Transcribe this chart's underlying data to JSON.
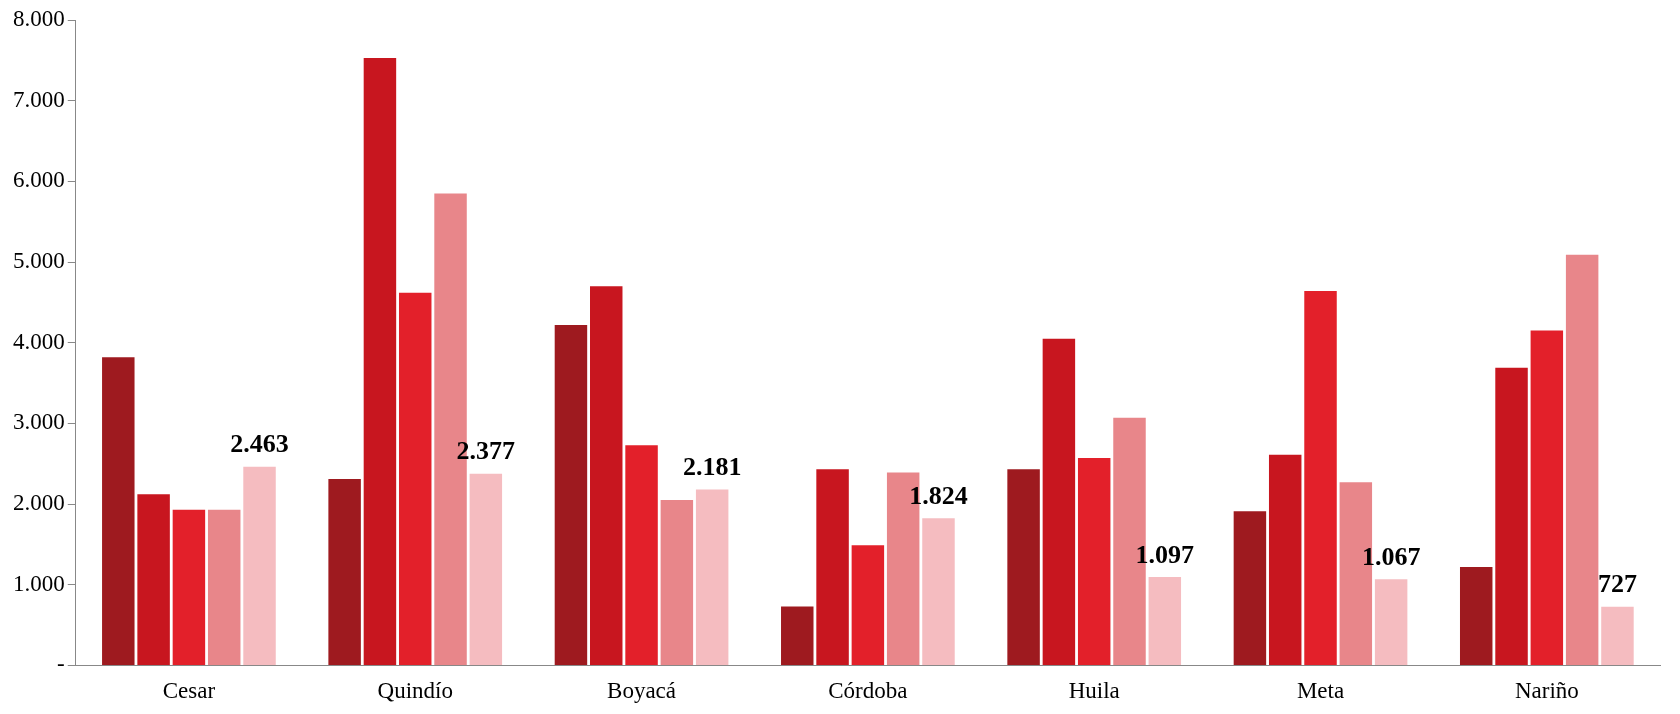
{
  "chart_data": {
    "type": "bar",
    "categories": [
      "Cesar",
      "Quindío",
      "Boyacá",
      "Córdoba",
      "Huila",
      "Meta",
      "Nariño"
    ],
    "series": [
      {
        "color": "#9e1a1f",
        "values": [
          3820,
          2310,
          4220,
          730,
          2430,
          1910,
          1220
        ]
      },
      {
        "color": "#c8161f",
        "values": [
          2120,
          7530,
          4700,
          2430,
          4050,
          2610,
          3690
        ]
      },
      {
        "color": "#e3202a",
        "values": [
          1930,
          4620,
          2730,
          1490,
          2570,
          4640,
          4150
        ]
      },
      {
        "color": "#e8868a",
        "values": [
          1930,
          5850,
          2050,
          2390,
          3070,
          2270,
          5090
        ]
      },
      {
        "color": "#f5bcc0",
        "values": [
          2463,
          2377,
          2181,
          1824,
          1097,
          1067,
          727
        ],
        "value_labels": [
          "2.463",
          "2.377",
          "2.181",
          "1.824",
          "1.097",
          "1.067",
          "727"
        ]
      }
    ],
    "ylim": [
      0,
      8000
    ],
    "yticks": [
      {
        "value": 0,
        "label": "-"
      },
      {
        "value": 1000,
        "label": "1.000"
      },
      {
        "value": 2000,
        "label": "2.000"
      },
      {
        "value": 3000,
        "label": "3.000"
      },
      {
        "value": 4000,
        "label": "4.000"
      },
      {
        "value": 5000,
        "label": "5.000"
      },
      {
        "value": 6000,
        "label": "6.000"
      },
      {
        "value": 7000,
        "label": "7.000"
      },
      {
        "value": 8000,
        "label": "8.000"
      }
    ],
    "grid": false,
    "legend": false
  }
}
